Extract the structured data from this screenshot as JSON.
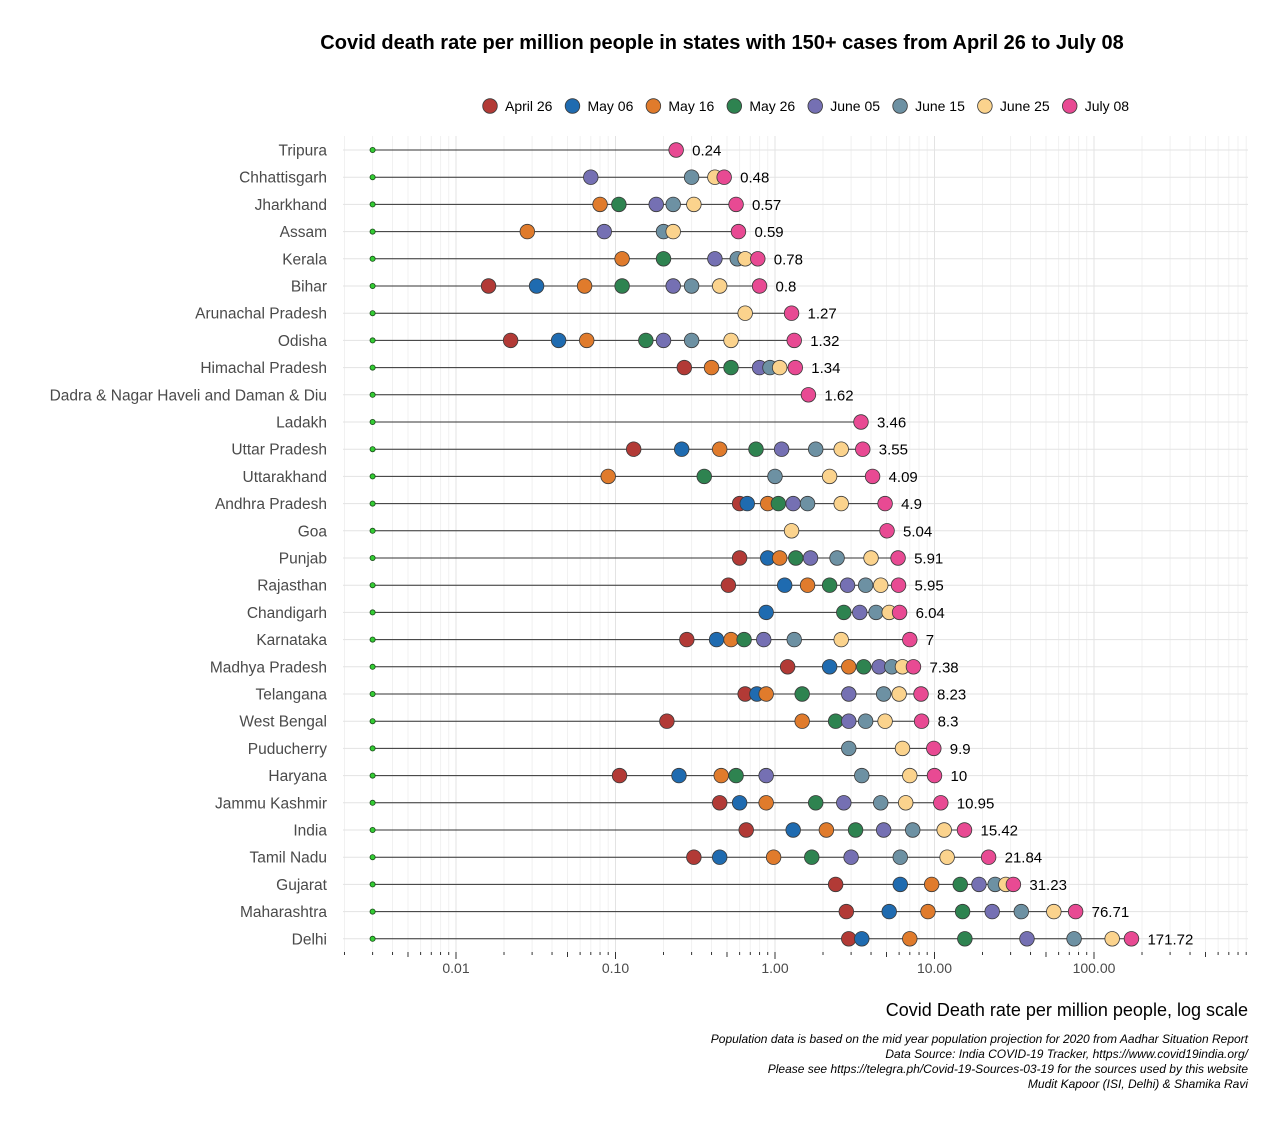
{
  "chart_data": {
    "type": "scatter",
    "title": "Covid death rate per million people in states with 150+ cases from April 26 to July 08",
    "xlabel": "Covid Death rate per million people, log scale",
    "ylabel": "",
    "x_scale": "log",
    "xlim": [
      0.002,
      900
    ],
    "x_ticks": [
      {
        "value": 0.01,
        "label": "0.01"
      },
      {
        "value": 0.1,
        "label": "0.10"
      },
      {
        "value": 1,
        "label": "1.00"
      },
      {
        "value": 10,
        "label": "10.00"
      },
      {
        "value": 100,
        "label": "100.00"
      }
    ],
    "baseline_value": 0.003,
    "legend_position": "top",
    "series": [
      {
        "name": "April 26",
        "color": "#b23a36"
      },
      {
        "name": "May 06",
        "color": "#1f6bb0"
      },
      {
        "name": "May 16",
        "color": "#e07b2c"
      },
      {
        "name": "May 26",
        "color": "#2e8350"
      },
      {
        "name": "June 05",
        "color": "#7570b3"
      },
      {
        "name": "June 15",
        "color": "#6d91a3"
      },
      {
        "name": "June 25",
        "color": "#fbd38d"
      },
      {
        "name": "July 08",
        "color": "#e84a93"
      }
    ],
    "rows": [
      {
        "state": "Tripura",
        "label": "0.24",
        "values": [
          null,
          null,
          null,
          null,
          null,
          null,
          null,
          0.24
        ]
      },
      {
        "state": "Chhattisgarh",
        "label": "0.48",
        "values": [
          null,
          null,
          null,
          null,
          0.07,
          0.3,
          0.42,
          0.48
        ]
      },
      {
        "state": "Jharkhand",
        "label": "0.57",
        "values": [
          null,
          null,
          0.08,
          0.105,
          0.18,
          0.23,
          0.31,
          0.57
        ]
      },
      {
        "state": "Assam",
        "label": "0.59",
        "values": [
          null,
          null,
          0.028,
          null,
          0.085,
          0.2,
          0.23,
          0.59
        ]
      },
      {
        "state": "Kerala",
        "label": "0.78",
        "values": [
          null,
          null,
          0.11,
          0.2,
          0.42,
          0.58,
          0.65,
          0.78
        ]
      },
      {
        "state": "Bihar",
        "label": "0.8",
        "values": [
          0.016,
          0.032,
          0.064,
          0.11,
          0.23,
          0.3,
          0.45,
          0.8
        ]
      },
      {
        "state": "Arunachal Pradesh",
        "label": "1.27",
        "values": [
          null,
          null,
          null,
          null,
          null,
          null,
          0.65,
          1.27
        ]
      },
      {
        "state": "Odisha",
        "label": "1.32",
        "values": [
          0.022,
          0.044,
          0.066,
          0.155,
          0.2,
          0.3,
          0.53,
          1.32
        ]
      },
      {
        "state": "Himachal Pradesh",
        "label": "1.34",
        "values": [
          0.27,
          null,
          0.4,
          0.53,
          0.8,
          0.93,
          1.07,
          1.34
        ]
      },
      {
        "state": "Dadra & Nagar Haveli and Daman & Diu",
        "label": "1.62",
        "values": [
          null,
          null,
          null,
          null,
          null,
          null,
          null,
          1.62
        ]
      },
      {
        "state": "Ladakh",
        "label": "3.46",
        "values": [
          null,
          null,
          null,
          null,
          null,
          null,
          null,
          3.46
        ]
      },
      {
        "state": "Uttar Pradesh",
        "label": "3.55",
        "values": [
          0.13,
          0.26,
          0.45,
          0.76,
          1.1,
          1.8,
          2.6,
          3.55
        ]
      },
      {
        "state": "Uttarakhand",
        "label": "4.09",
        "values": [
          null,
          null,
          0.09,
          0.36,
          null,
          1.0,
          2.2,
          4.09
        ]
      },
      {
        "state": "Andhra Pradesh",
        "label": "4.9",
        "values": [
          0.6,
          0.67,
          0.9,
          1.05,
          1.3,
          1.6,
          2.6,
          4.9
        ]
      },
      {
        "state": "Goa",
        "label": "5.04",
        "values": [
          null,
          null,
          null,
          null,
          null,
          null,
          1.27,
          5.04
        ]
      },
      {
        "state": "Punjab",
        "label": "5.91",
        "values": [
          0.6,
          0.9,
          1.07,
          1.35,
          1.67,
          2.45,
          4.0,
          5.91
        ]
      },
      {
        "state": "Rajasthan",
        "label": "5.95",
        "values": [
          0.51,
          1.15,
          1.6,
          2.2,
          2.85,
          3.7,
          4.6,
          5.95
        ]
      },
      {
        "state": "Chandigarh",
        "label": "6.04",
        "values": [
          null,
          0.88,
          null,
          2.7,
          3.4,
          4.3,
          5.2,
          6.04
        ]
      },
      {
        "state": "Karnataka",
        "label": "7",
        "values": [
          0.28,
          0.43,
          0.53,
          0.64,
          0.85,
          1.32,
          2.6,
          7
        ]
      },
      {
        "state": "Madhya Pradesh",
        "label": "7.38",
        "values": [
          1.2,
          2.2,
          2.9,
          3.6,
          4.5,
          5.4,
          6.3,
          7.38
        ]
      },
      {
        "state": "Telangana",
        "label": "8.23",
        "values": [
          0.65,
          0.77,
          0.88,
          1.48,
          2.9,
          4.8,
          6.0,
          8.23
        ]
      },
      {
        "state": "West Bengal",
        "label": "8.3",
        "values": [
          0.21,
          null,
          1.48,
          2.4,
          2.9,
          3.7,
          4.9,
          8.3
        ]
      },
      {
        "state": "Puducherry",
        "label": "9.9",
        "values": [
          null,
          null,
          null,
          null,
          null,
          2.9,
          6.3,
          9.9
        ]
      },
      {
        "state": "Haryana",
        "label": "10",
        "values": [
          0.106,
          0.25,
          0.46,
          0.57,
          0.88,
          3.5,
          7.0,
          10
        ]
      },
      {
        "state": "Jammu Kashmir",
        "label": "10.95",
        "values": [
          0.45,
          0.6,
          0.88,
          1.8,
          2.7,
          4.6,
          6.6,
          10.95
        ]
      },
      {
        "state": "India",
        "label": "15.42",
        "values": [
          0.66,
          1.3,
          2.1,
          3.2,
          4.8,
          7.3,
          11.5,
          15.42
        ]
      },
      {
        "state": "Tamil Nadu",
        "label": "21.84",
        "values": [
          0.31,
          0.45,
          0.98,
          1.7,
          3.0,
          6.1,
          12.0,
          21.84
        ]
      },
      {
        "state": "Gujarat",
        "label": "31.23",
        "values": [
          2.4,
          6.1,
          9.6,
          14.5,
          19.0,
          24.0,
          28.0,
          31.23
        ]
      },
      {
        "state": "Maharashtra",
        "label": "76.71",
        "values": [
          2.8,
          5.2,
          9.1,
          15.0,
          23.0,
          35.0,
          56.0,
          76.71
        ]
      },
      {
        "state": "Delhi",
        "label": "171.72",
        "values": [
          2.9,
          3.5,
          7.0,
          15.5,
          38.0,
          75.0,
          130.0,
          171.72
        ]
      }
    ],
    "captions": [
      "Population data is based on the mid year population projection for 2020 from Aadhar Situation Report",
      "Data Source: India COVID-19 Tracker, https://www.covid19india.org/",
      "Please see https://telegra.ph/Covid-19-Sources-03-19 for the sources used by this website",
      "Mudit Kapoor (ISI, Delhi) & Shamika Ravi"
    ]
  }
}
